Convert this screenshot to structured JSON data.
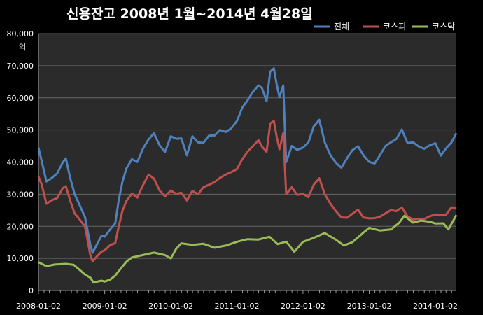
{
  "chart_data": {
    "type": "line",
    "title": "신용잔고  2008년 1월~2014년 4월28일",
    "ylabel": "억",
    "ylim": [
      0,
      80000
    ],
    "yticks": [
      "0",
      "10,000",
      "20,000",
      "30,000",
      "40,000",
      "50,000",
      "60,000",
      "70,000",
      "80,000"
    ],
    "ytick_values": [
      0,
      10000,
      20000,
      30000,
      40000,
      50000,
      60000,
      70000,
      80000
    ],
    "xlim": [
      "2008-01-02",
      "2014-04-28"
    ],
    "xticks": [
      "2008-01-02",
      "2009-01-02",
      "2010-01-02",
      "2011-01-02",
      "2012-01-02",
      "2013-01-02",
      "2014-01-02"
    ],
    "grid": "horizontal",
    "legend": "top-right",
    "colors": {
      "background": "#000000",
      "plot": "#2b2b2b",
      "grid": "#666666",
      "axis": "#9a9a9a"
    },
    "series": [
      {
        "name": "전체",
        "color": "#4f81bd",
        "x": [
          "2008-01-02",
          "2008-01-20",
          "2008-02-15",
          "2008-03-15",
          "2008-04-15",
          "2008-05-15",
          "2008-06-01",
          "2008-06-25",
          "2008-07-20",
          "2008-08-15",
          "2008-09-15",
          "2008-10-15",
          "2008-10-27",
          "2008-11-15",
          "2008-12-15",
          "2009-01-02",
          "2009-02-01",
          "2009-03-01",
          "2009-03-20",
          "2009-04-10",
          "2009-05-01",
          "2009-06-01",
          "2009-07-01",
          "2009-08-01",
          "2009-09-01",
          "2009-10-01",
          "2009-11-01",
          "2009-12-01",
          "2010-01-02",
          "2010-02-01",
          "2010-03-01",
          "2010-04-01",
          "2010-05-01",
          "2010-06-01",
          "2010-07-01",
          "2010-08-01",
          "2010-09-01",
          "2010-10-01",
          "2010-11-01",
          "2010-12-01",
          "2011-01-02",
          "2011-02-01",
          "2011-03-01",
          "2011-04-01",
          "2011-05-01",
          "2011-05-20",
          "2011-06-15",
          "2011-07-05",
          "2011-07-25",
          "2011-08-10",
          "2011-08-25",
          "2011-09-15",
          "2011-10-01",
          "2011-11-01",
          "2011-12-01",
          "2012-01-02",
          "2012-02-01",
          "2012-03-01",
          "2012-04-01",
          "2012-05-01",
          "2012-06-01",
          "2012-07-01",
          "2012-08-01",
          "2012-09-01",
          "2012-10-01",
          "2012-11-01",
          "2012-12-01",
          "2013-01-02",
          "2013-02-01",
          "2013-03-01",
          "2013-04-01",
          "2013-05-01",
          "2013-06-01",
          "2013-07-01",
          "2013-08-01",
          "2013-09-01",
          "2013-10-01",
          "2013-11-01",
          "2013-12-01",
          "2014-01-02",
          "2014-02-01",
          "2014-03-01",
          "2014-04-01",
          "2014-04-28"
        ],
        "values": [
          44500,
          40000,
          34000,
          35000,
          36500,
          40000,
          41000,
          35000,
          30000,
          27000,
          23000,
          14000,
          12000,
          14000,
          17000,
          17000,
          19000,
          21000,
          28000,
          34000,
          38000,
          41000,
          40000,
          44000,
          47000,
          49000,
          45000,
          43000,
          48000,
          47500,
          47500,
          42000,
          48000,
          46000,
          46000,
          48500,
          48500,
          50000,
          49500,
          50500,
          53000,
          57000,
          59000,
          62000,
          64000,
          63000,
          59000,
          68000,
          69000,
          64000,
          60000,
          64000,
          40000,
          45000,
          44000,
          44500,
          46000,
          51000,
          53000,
          46000,
          42000,
          40000,
          38000,
          41000,
          43500,
          45000,
          42000,
          40000,
          39500,
          42000,
          45000,
          46000,
          47000,
          50000,
          46000,
          46000,
          45000,
          44000,
          45000,
          46000,
          42000,
          44000,
          46000,
          49000
        ]
      },
      {
        "name": "코스피",
        "color": "#c0504d",
        "x": [
          "2008-01-02",
          "2008-01-20",
          "2008-02-15",
          "2008-03-15",
          "2008-04-15",
          "2008-05-15",
          "2008-06-01",
          "2008-06-25",
          "2008-07-20",
          "2008-08-15",
          "2008-09-15",
          "2008-10-15",
          "2008-10-27",
          "2008-11-15",
          "2008-12-15",
          "2009-01-02",
          "2009-02-01",
          "2009-03-01",
          "2009-03-20",
          "2009-04-10",
          "2009-05-01",
          "2009-06-01",
          "2009-07-01",
          "2009-08-01",
          "2009-09-01",
          "2009-10-01",
          "2009-11-01",
          "2009-12-01",
          "2010-01-02",
          "2010-02-01",
          "2010-03-01",
          "2010-04-01",
          "2010-05-01",
          "2010-06-01",
          "2010-07-01",
          "2010-08-01",
          "2010-09-01",
          "2010-10-01",
          "2010-11-01",
          "2010-12-01",
          "2011-01-02",
          "2011-02-01",
          "2011-03-01",
          "2011-04-01",
          "2011-05-01",
          "2011-05-20",
          "2011-06-15",
          "2011-07-05",
          "2011-07-25",
          "2011-08-10",
          "2011-08-25",
          "2011-09-15",
          "2011-10-01",
          "2011-11-01",
          "2011-12-01",
          "2012-01-02",
          "2012-02-01",
          "2012-03-01",
          "2012-04-01",
          "2012-05-01",
          "2012-06-01",
          "2012-07-01",
          "2012-08-01",
          "2012-09-01",
          "2012-10-01",
          "2012-11-01",
          "2012-12-01",
          "2013-01-02",
          "2013-02-01",
          "2013-03-01",
          "2013-04-01",
          "2013-05-01",
          "2013-06-01",
          "2013-07-01",
          "2013-08-01",
          "2013-09-01",
          "2013-10-01",
          "2013-11-01",
          "2013-12-01",
          "2014-01-02",
          "2014-02-01",
          "2014-03-01",
          "2014-04-01",
          "2014-04-28"
        ],
        "values": [
          35500,
          33000,
          27000,
          28000,
          29000,
          32000,
          32500,
          28000,
          24000,
          22000,
          20000,
          11000,
          9000,
          10500,
          12000,
          12500,
          14000,
          15000,
          20000,
          25000,
          28000,
          30000,
          29000,
          33000,
          36000,
          35000,
          31000,
          29500,
          31000,
          30000,
          30500,
          28000,
          31000,
          30000,
          32000,
          33000,
          34000,
          35000,
          36000,
          37000,
          38000,
          41000,
          43000,
          45000,
          47000,
          45000,
          43000,
          52000,
          53000,
          48000,
          44000,
          49000,
          30000,
          32000,
          30000,
          30000,
          29000,
          33000,
          35000,
          30000,
          27000,
          25000,
          23000,
          22500,
          24000,
          25000,
          23000,
          22500,
          22500,
          23000,
          24000,
          25000,
          24500,
          26000,
          23000,
          22000,
          22500,
          22500,
          23000,
          23500,
          23500,
          23500,
          26000,
          25500
        ]
      },
      {
        "name": "코스닥",
        "color": "#9bbb59",
        "x": [
          "2008-01-02",
          "2008-02-15",
          "2008-04-01",
          "2008-06-01",
          "2008-07-15",
          "2008-08-15",
          "2008-09-15",
          "2008-10-15",
          "2008-11-01",
          "2008-12-15",
          "2009-01-02",
          "2009-02-01",
          "2009-03-01",
          "2009-04-01",
          "2009-05-01",
          "2009-06-01",
          "2009-08-01",
          "2009-10-01",
          "2009-12-01",
          "2010-01-02",
          "2010-02-01",
          "2010-03-01",
          "2010-05-01",
          "2010-07-01",
          "2010-09-01",
          "2010-11-01",
          "2011-01-02",
          "2011-03-01",
          "2011-05-01",
          "2011-07-01",
          "2011-08-15",
          "2011-10-01",
          "2011-11-15",
          "2012-01-02",
          "2012-03-01",
          "2012-05-01",
          "2012-07-01",
          "2012-08-15",
          "2012-10-01",
          "2012-12-01",
          "2013-01-02",
          "2013-03-01",
          "2013-05-01",
          "2013-06-15",
          "2013-07-15",
          "2013-09-01",
          "2013-10-15",
          "2013-12-01",
          "2014-01-02",
          "2014-02-15",
          "2014-03-15",
          "2014-04-28"
        ],
        "values": [
          8800,
          7500,
          8000,
          8500,
          8000,
          6500,
          5000,
          4000,
          2500,
          3000,
          3000,
          3500,
          4500,
          7000,
          9000,
          10500,
          11000,
          12000,
          11000,
          10000,
          13000,
          14500,
          14000,
          14500,
          13500,
          14000,
          15000,
          16000,
          16000,
          16500,
          14500,
          15000,
          12000,
          15000,
          16500,
          18000,
          16000,
          14000,
          15000,
          18000,
          19500,
          18500,
          19000,
          21000,
          23500,
          21000,
          22000,
          21500,
          21000,
          21000,
          19000,
          23500
        ]
      }
    ]
  }
}
